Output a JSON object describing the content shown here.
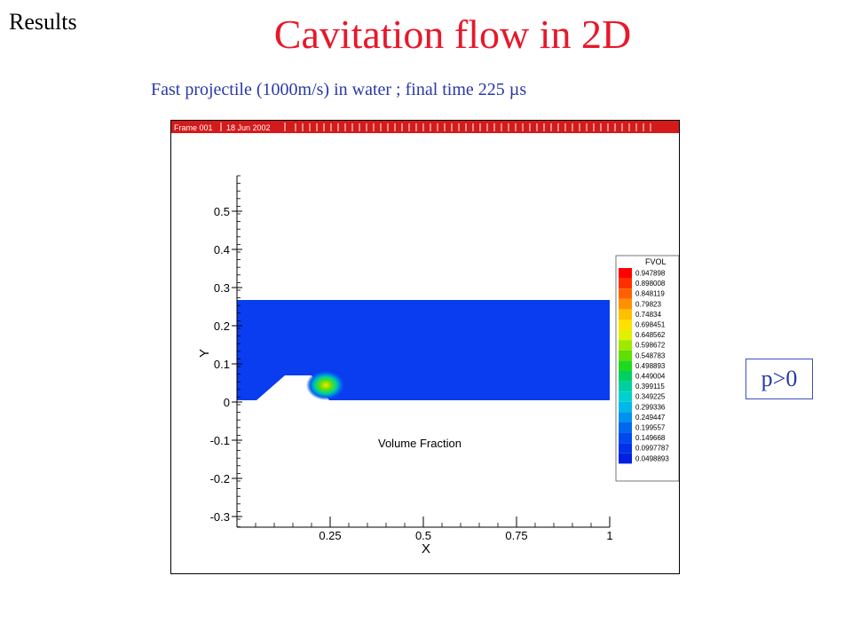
{
  "slide": {
    "results_label": "Results",
    "title": "Cavitation flow in 2D",
    "subtitle": "Fast projectile (1000m/s) in water ; final time 225 µs",
    "pressure_note": "p>0"
  },
  "plot": {
    "frame_label": "Frame 001",
    "date_label": "18 Jun 2002",
    "annotation": "Volume Fraction",
    "x_axis_label": "X",
    "y_axis_label": "Y",
    "x_ticks": [
      "0.25",
      "0.5",
      "0.75",
      "1"
    ],
    "y_ticks": [
      "0.5",
      "0.4",
      "0.3",
      "0.2",
      "0.1",
      "0",
      "-0.1",
      "-0.2",
      "-0.3"
    ],
    "colors": {
      "header_bar": "#d41a1a",
      "water": "#0a3df0"
    }
  },
  "legend": {
    "title": "FVOL",
    "levels": [
      "0.947898",
      "0.898008",
      "0.848119",
      "0.79823",
      "0.74834",
      "0.698451",
      "0.648562",
      "0.598672",
      "0.548783",
      "0.498893",
      "0.449004",
      "0.399115",
      "0.349225",
      "0.299336",
      "0.249447",
      "0.199557",
      "0.149668",
      "0.0997787",
      "0.0498893"
    ],
    "colors": [
      "#ff0000",
      "#ff3000",
      "#ff6000",
      "#ff9000",
      "#ffc000",
      "#ffe000",
      "#e0f000",
      "#a0e800",
      "#60e000",
      "#20d820",
      "#00d060",
      "#00d0a0",
      "#00d0d0",
      "#00b8e8",
      "#0090f0",
      "#0068f0",
      "#0048f0",
      "#0030e8",
      "#0020e0"
    ]
  }
}
